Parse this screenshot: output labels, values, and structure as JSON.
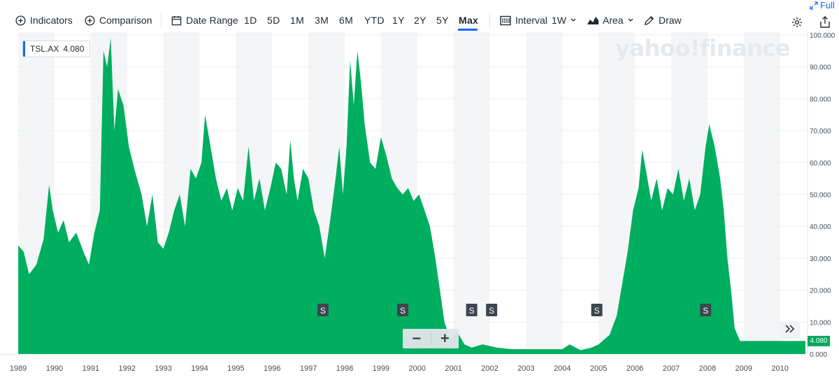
{
  "toolbar": {
    "indicators": "Indicators",
    "comparison": "Comparison",
    "date_range": "Date Range",
    "ranges": [
      "1D",
      "5D",
      "1M",
      "3M",
      "6M",
      "YTD",
      "1Y",
      "2Y",
      "5Y",
      "Max"
    ],
    "active_range": "Max",
    "interval_label": "Interval",
    "interval_value": "1W",
    "chart_type": "Area",
    "draw": "Draw",
    "full": "Full"
  },
  "legend": {
    "symbol": "TSL.AX",
    "value": "4.080"
  },
  "watermark": "yahoo!finance",
  "last_price_badge": "4.080",
  "split_marker": "S",
  "colors": {
    "area": "#00ae5f",
    "accent": "#0f69ff",
    "band": "#f3f5f6"
  },
  "chart_data": {
    "type": "area",
    "title": "",
    "xlabel": "",
    "ylabel": "",
    "ylim": [
      0,
      100
    ],
    "y_ticks": [
      "0.000",
      "10.000",
      "20.000",
      "30.000",
      "40.000",
      "50.000",
      "60.000",
      "70.000",
      "80.000",
      "90.000",
      "100.000"
    ],
    "x_ticks": [
      "1989",
      "1990",
      "1991",
      "1992",
      "1993",
      "1994",
      "1995",
      "1996",
      "1997",
      "1998",
      "1999",
      "2000",
      "2001",
      "2002",
      "2003",
      "2004",
      "2005",
      "2006",
      "2007",
      "2008",
      "2009",
      "2010"
    ],
    "xlim": [
      1988.96,
      2010.74
    ],
    "grid": "alternating-year-bands",
    "series": [
      {
        "points": [
          [
            1989.0,
            34
          ],
          [
            1989.15,
            32
          ],
          [
            1989.3,
            25
          ],
          [
            1989.5,
            28
          ],
          [
            1989.7,
            36
          ],
          [
            1989.85,
            53
          ],
          [
            1989.95,
            45
          ],
          [
            1990.1,
            38
          ],
          [
            1990.25,
            42
          ],
          [
            1990.4,
            35
          ],
          [
            1990.6,
            38
          ],
          [
            1990.8,
            32
          ],
          [
            1990.95,
            28
          ],
          [
            1991.1,
            38
          ],
          [
            1991.25,
            45
          ],
          [
            1991.35,
            95
          ],
          [
            1991.45,
            90
          ],
          [
            1991.55,
            99
          ],
          [
            1991.65,
            70
          ],
          [
            1991.75,
            83
          ],
          [
            1991.9,
            78
          ],
          [
            1992.05,
            65
          ],
          [
            1992.2,
            58
          ],
          [
            1992.4,
            50
          ],
          [
            1992.55,
            40
          ],
          [
            1992.7,
            50
          ],
          [
            1992.85,
            35
          ],
          [
            1993.0,
            33
          ],
          [
            1993.15,
            38
          ],
          [
            1993.3,
            45
          ],
          [
            1993.45,
            50
          ],
          [
            1993.6,
            40
          ],
          [
            1993.75,
            58
          ],
          [
            1993.9,
            55
          ],
          [
            1994.05,
            60
          ],
          [
            1994.15,
            75
          ],
          [
            1994.3,
            65
          ],
          [
            1994.45,
            55
          ],
          [
            1994.6,
            48
          ],
          [
            1994.75,
            52
          ],
          [
            1994.9,
            45
          ],
          [
            1995.05,
            52
          ],
          [
            1995.2,
            48
          ],
          [
            1995.35,
            65
          ],
          [
            1995.5,
            48
          ],
          [
            1995.65,
            55
          ],
          [
            1995.8,
            45
          ],
          [
            1995.95,
            52
          ],
          [
            1996.1,
            60
          ],
          [
            1996.25,
            58
          ],
          [
            1996.4,
            50
          ],
          [
            1996.5,
            67
          ],
          [
            1996.6,
            55
          ],
          [
            1996.7,
            48
          ],
          [
            1996.85,
            58
          ],
          [
            1997.0,
            55
          ],
          [
            1997.15,
            45
          ],
          [
            1997.3,
            40
          ],
          [
            1997.45,
            30
          ],
          [
            1997.6,
            42
          ],
          [
            1997.75,
            55
          ],
          [
            1997.85,
            65
          ],
          [
            1997.95,
            50
          ],
          [
            1998.05,
            65
          ],
          [
            1998.15,
            92
          ],
          [
            1998.25,
            78
          ],
          [
            1998.35,
            95
          ],
          [
            1998.45,
            85
          ],
          [
            1998.55,
            72
          ],
          [
            1998.7,
            60
          ],
          [
            1998.85,
            58
          ],
          [
            1999.0,
            68
          ],
          [
            1999.15,
            62
          ],
          [
            1999.3,
            55
          ],
          [
            1999.45,
            52
          ],
          [
            1999.6,
            50
          ],
          [
            1999.75,
            52
          ],
          [
            1999.9,
            48
          ],
          [
            2000.05,
            50
          ],
          [
            2000.2,
            45
          ],
          [
            2000.35,
            40
          ],
          [
            2000.5,
            30
          ],
          [
            2000.65,
            18
          ],
          [
            2000.75,
            10
          ],
          [
            2000.9,
            5
          ],
          [
            2001.1,
            7
          ],
          [
            2001.3,
            3
          ],
          [
            2001.5,
            2
          ],
          [
            2001.8,
            3
          ],
          [
            2002.2,
            2
          ],
          [
            2002.6,
            1.5
          ],
          [
            2003.0,
            1.5
          ],
          [
            2003.5,
            1.5
          ],
          [
            2004.0,
            1.5
          ],
          [
            2004.2,
            3
          ],
          [
            2004.5,
            1.2
          ],
          [
            2004.8,
            2
          ],
          [
            2005.0,
            3
          ],
          [
            2005.3,
            6
          ],
          [
            2005.5,
            12
          ],
          [
            2005.65,
            22
          ],
          [
            2005.8,
            32
          ],
          [
            2005.95,
            45
          ],
          [
            2006.1,
            52
          ],
          [
            2006.2,
            64
          ],
          [
            2006.3,
            58
          ],
          [
            2006.45,
            48
          ],
          [
            2006.6,
            55
          ],
          [
            2006.75,
            45
          ],
          [
            2006.9,
            52
          ],
          [
            2007.05,
            50
          ],
          [
            2007.2,
            58
          ],
          [
            2007.35,
            48
          ],
          [
            2007.5,
            55
          ],
          [
            2007.65,
            45
          ],
          [
            2007.8,
            50
          ],
          [
            2007.95,
            65
          ],
          [
            2008.05,
            72
          ],
          [
            2008.2,
            65
          ],
          [
            2008.35,
            55
          ],
          [
            2008.45,
            45
          ],
          [
            2008.55,
            30
          ],
          [
            2008.65,
            20
          ],
          [
            2008.75,
            8
          ],
          [
            2008.9,
            4.08
          ],
          [
            2010.7,
            4.08
          ]
        ]
      }
    ],
    "split_events": [
      1997.4,
      1999.6,
      2001.5,
      2002.05,
      2004.95,
      2007.95
    ]
  }
}
